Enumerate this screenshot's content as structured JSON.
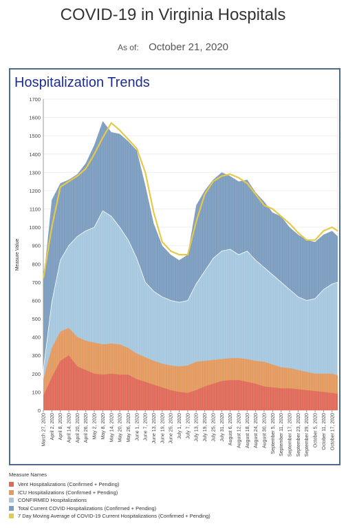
{
  "header": {
    "title": "COVID-19 in Virginia Hospitals",
    "as_of_label": "As of:",
    "as_of_date": "October 21, 2020"
  },
  "chart_data": {
    "type": "area",
    "title": "Hospitalization Trends",
    "ylabel": "Measure Value",
    "xlabel": "",
    "ylim": [
      0,
      1700
    ],
    "yticks": [
      0,
      100,
      200,
      300,
      400,
      500,
      600,
      700,
      800,
      900,
      1000,
      1100,
      1200,
      1300,
      1400,
      1500,
      1600,
      1700
    ],
    "x_start": "2020-03-27",
    "x_end": "2020-10-21",
    "xtick_labels": [
      "March 27, 2020",
      "April 2, 2020",
      "April 8, 2020",
      "April 14, 2020",
      "April 20, 2020",
      "April 26, 2020",
      "May 2, 2020",
      "May 8, 2020",
      "May 14, 2020",
      "May 20, 2020",
      "May 26, 2020",
      "June 1, 2020",
      "June 7, 2020",
      "June 13, 2020",
      "June 19, 2020",
      "June 25, 2020",
      "July 1, 2020",
      "July 7, 2020",
      "July 13, 2020",
      "July 19, 2020",
      "July 25, 2020",
      "July 31, 2020",
      "August 6, 2020",
      "August 12, 2020",
      "August 18, 2020",
      "August 24, 2020",
      "August 30, 2020",
      "September 5, 2020",
      "September 11, 2020",
      "September 17, 2020",
      "September 23, 2020",
      "September 29, 2020",
      "October 5, 2020",
      "October 11, 2020",
      "October 17, 2020"
    ],
    "x": [
      "2020-03-27",
      "2020-04-02",
      "2020-04-08",
      "2020-04-14",
      "2020-04-20",
      "2020-04-26",
      "2020-05-02",
      "2020-05-08",
      "2020-05-14",
      "2020-05-20",
      "2020-05-26",
      "2020-06-01",
      "2020-06-07",
      "2020-06-13",
      "2020-06-19",
      "2020-06-25",
      "2020-07-01",
      "2020-07-07",
      "2020-07-13",
      "2020-07-19",
      "2020-07-25",
      "2020-07-31",
      "2020-08-06",
      "2020-08-12",
      "2020-08-18",
      "2020-08-24",
      "2020-08-30",
      "2020-09-05",
      "2020-09-11",
      "2020-09-17",
      "2020-09-23",
      "2020-09-29",
      "2020-10-05",
      "2020-10-11",
      "2020-10-17",
      "2020-10-21"
    ],
    "legend_title": "Measure Names",
    "legend_position": "bottom-left",
    "grid": true,
    "series": [
      {
        "name": "Vent Hospitalizations (Confirmed + Pending)",
        "color": "#e06a5a",
        "values": [
          80,
          180,
          270,
          300,
          240,
          220,
          200,
          195,
          200,
          195,
          195,
          170,
          155,
          140,
          125,
          110,
          100,
          95,
          110,
          130,
          145,
          160,
          165,
          165,
          155,
          145,
          130,
          125,
          120,
          120,
          115,
          110,
          105,
          100,
          95,
          90
        ]
      },
      {
        "name": "ICU Hospitalizations (Confirmed + Pending)",
        "color": "#e39a5f",
        "values": [
          170,
          340,
          430,
          450,
          400,
          380,
          370,
          360,
          365,
          360,
          340,
          310,
          290,
          270,
          255,
          245,
          240,
          245,
          265,
          270,
          275,
          280,
          285,
          285,
          280,
          270,
          265,
          250,
          235,
          230,
          220,
          210,
          200,
          200,
          200,
          190
        ]
      },
      {
        "name": "CONFIRMED Hospitalizations",
        "color": "#a6c8df",
        "values": [
          220,
          590,
          820,
          900,
          950,
          980,
          1000,
          1090,
          1060,
          1000,
          930,
          830,
          700,
          650,
          620,
          600,
          590,
          600,
          690,
          760,
          830,
          870,
          880,
          850,
          870,
          820,
          780,
          740,
          700,
          660,
          620,
          600,
          610,
          660,
          690,
          700
        ]
      },
      {
        "name": "Total Current COVID Hospitalizations (Confirmed + Pending)",
        "color": "#7c9dbf",
        "values": [
          700,
          1150,
          1240,
          1260,
          1290,
          1350,
          1450,
          1580,
          1520,
          1510,
          1470,
          1420,
          1230,
          1020,
          900,
          850,
          820,
          850,
          1120,
          1200,
          1260,
          1300,
          1280,
          1250,
          1260,
          1190,
          1140,
          1080,
          1060,
          1000,
          960,
          930,
          920,
          960,
          980,
          950
        ]
      },
      {
        "name": "7 Day Moving Average of COVID-19 Current Hospitalizations (Confirmed + Pending)",
        "color": "#e6c84a",
        "values": [
          720,
          1000,
          1220,
          1250,
          1280,
          1320,
          1400,
          1490,
          1570,
          1530,
          1480,
          1430,
          1300,
          1080,
          920,
          870,
          850,
          850,
          1030,
          1180,
          1250,
          1280,
          1290,
          1270,
          1240,
          1180,
          1120,
          1100,
          1060,
          1020,
          970,
          930,
          930,
          980,
          1000,
          980
        ]
      }
    ]
  }
}
